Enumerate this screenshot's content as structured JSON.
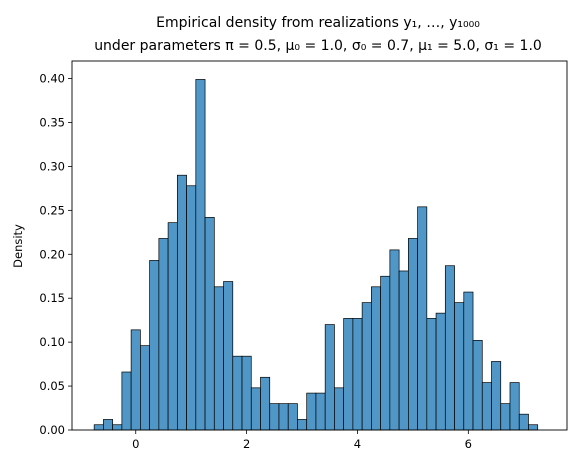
{
  "chart_data": {
    "type": "bar",
    "title_line1": "Empirical density from realizations y₁, …, y₁₀₀₀",
    "title_line2": "under parameters π = 0.5, μ₀ = 1.0, σ₀ = 0.7, μ₁ = 5.0, σ₁ = 1.0",
    "xlabel": "",
    "ylabel": "Density",
    "xlim": [
      -1.15,
      7.78
    ],
    "ylim": [
      0,
      0.42
    ],
    "x_ticks": [
      0,
      2,
      4,
      6
    ],
    "y_ticks": [
      0.0,
      0.05,
      0.1,
      0.15,
      0.2,
      0.25,
      0.3,
      0.35,
      0.4
    ],
    "bin_start": -0.75,
    "bin_width": 0.1667,
    "values": [
      0.006,
      0.012,
      0.006,
      0.066,
      0.114,
      0.096,
      0.193,
      0.218,
      0.236,
      0.29,
      0.278,
      0.399,
      0.242,
      0.163,
      0.169,
      0.084,
      0.084,
      0.048,
      0.06,
      0.03,
      0.03,
      0.03,
      0.012,
      0.042,
      0.042,
      0.12,
      0.048,
      0.127,
      0.127,
      0.145,
      0.163,
      0.175,
      0.205,
      0.181,
      0.218,
      0.254,
      0.127,
      0.133,
      0.187,
      0.145,
      0.157,
      0.102,
      0.054,
      0.078,
      0.03,
      0.054,
      0.018,
      0.006
    ],
    "bar_color": "#5097c7",
    "edge_color": "#000000"
  }
}
